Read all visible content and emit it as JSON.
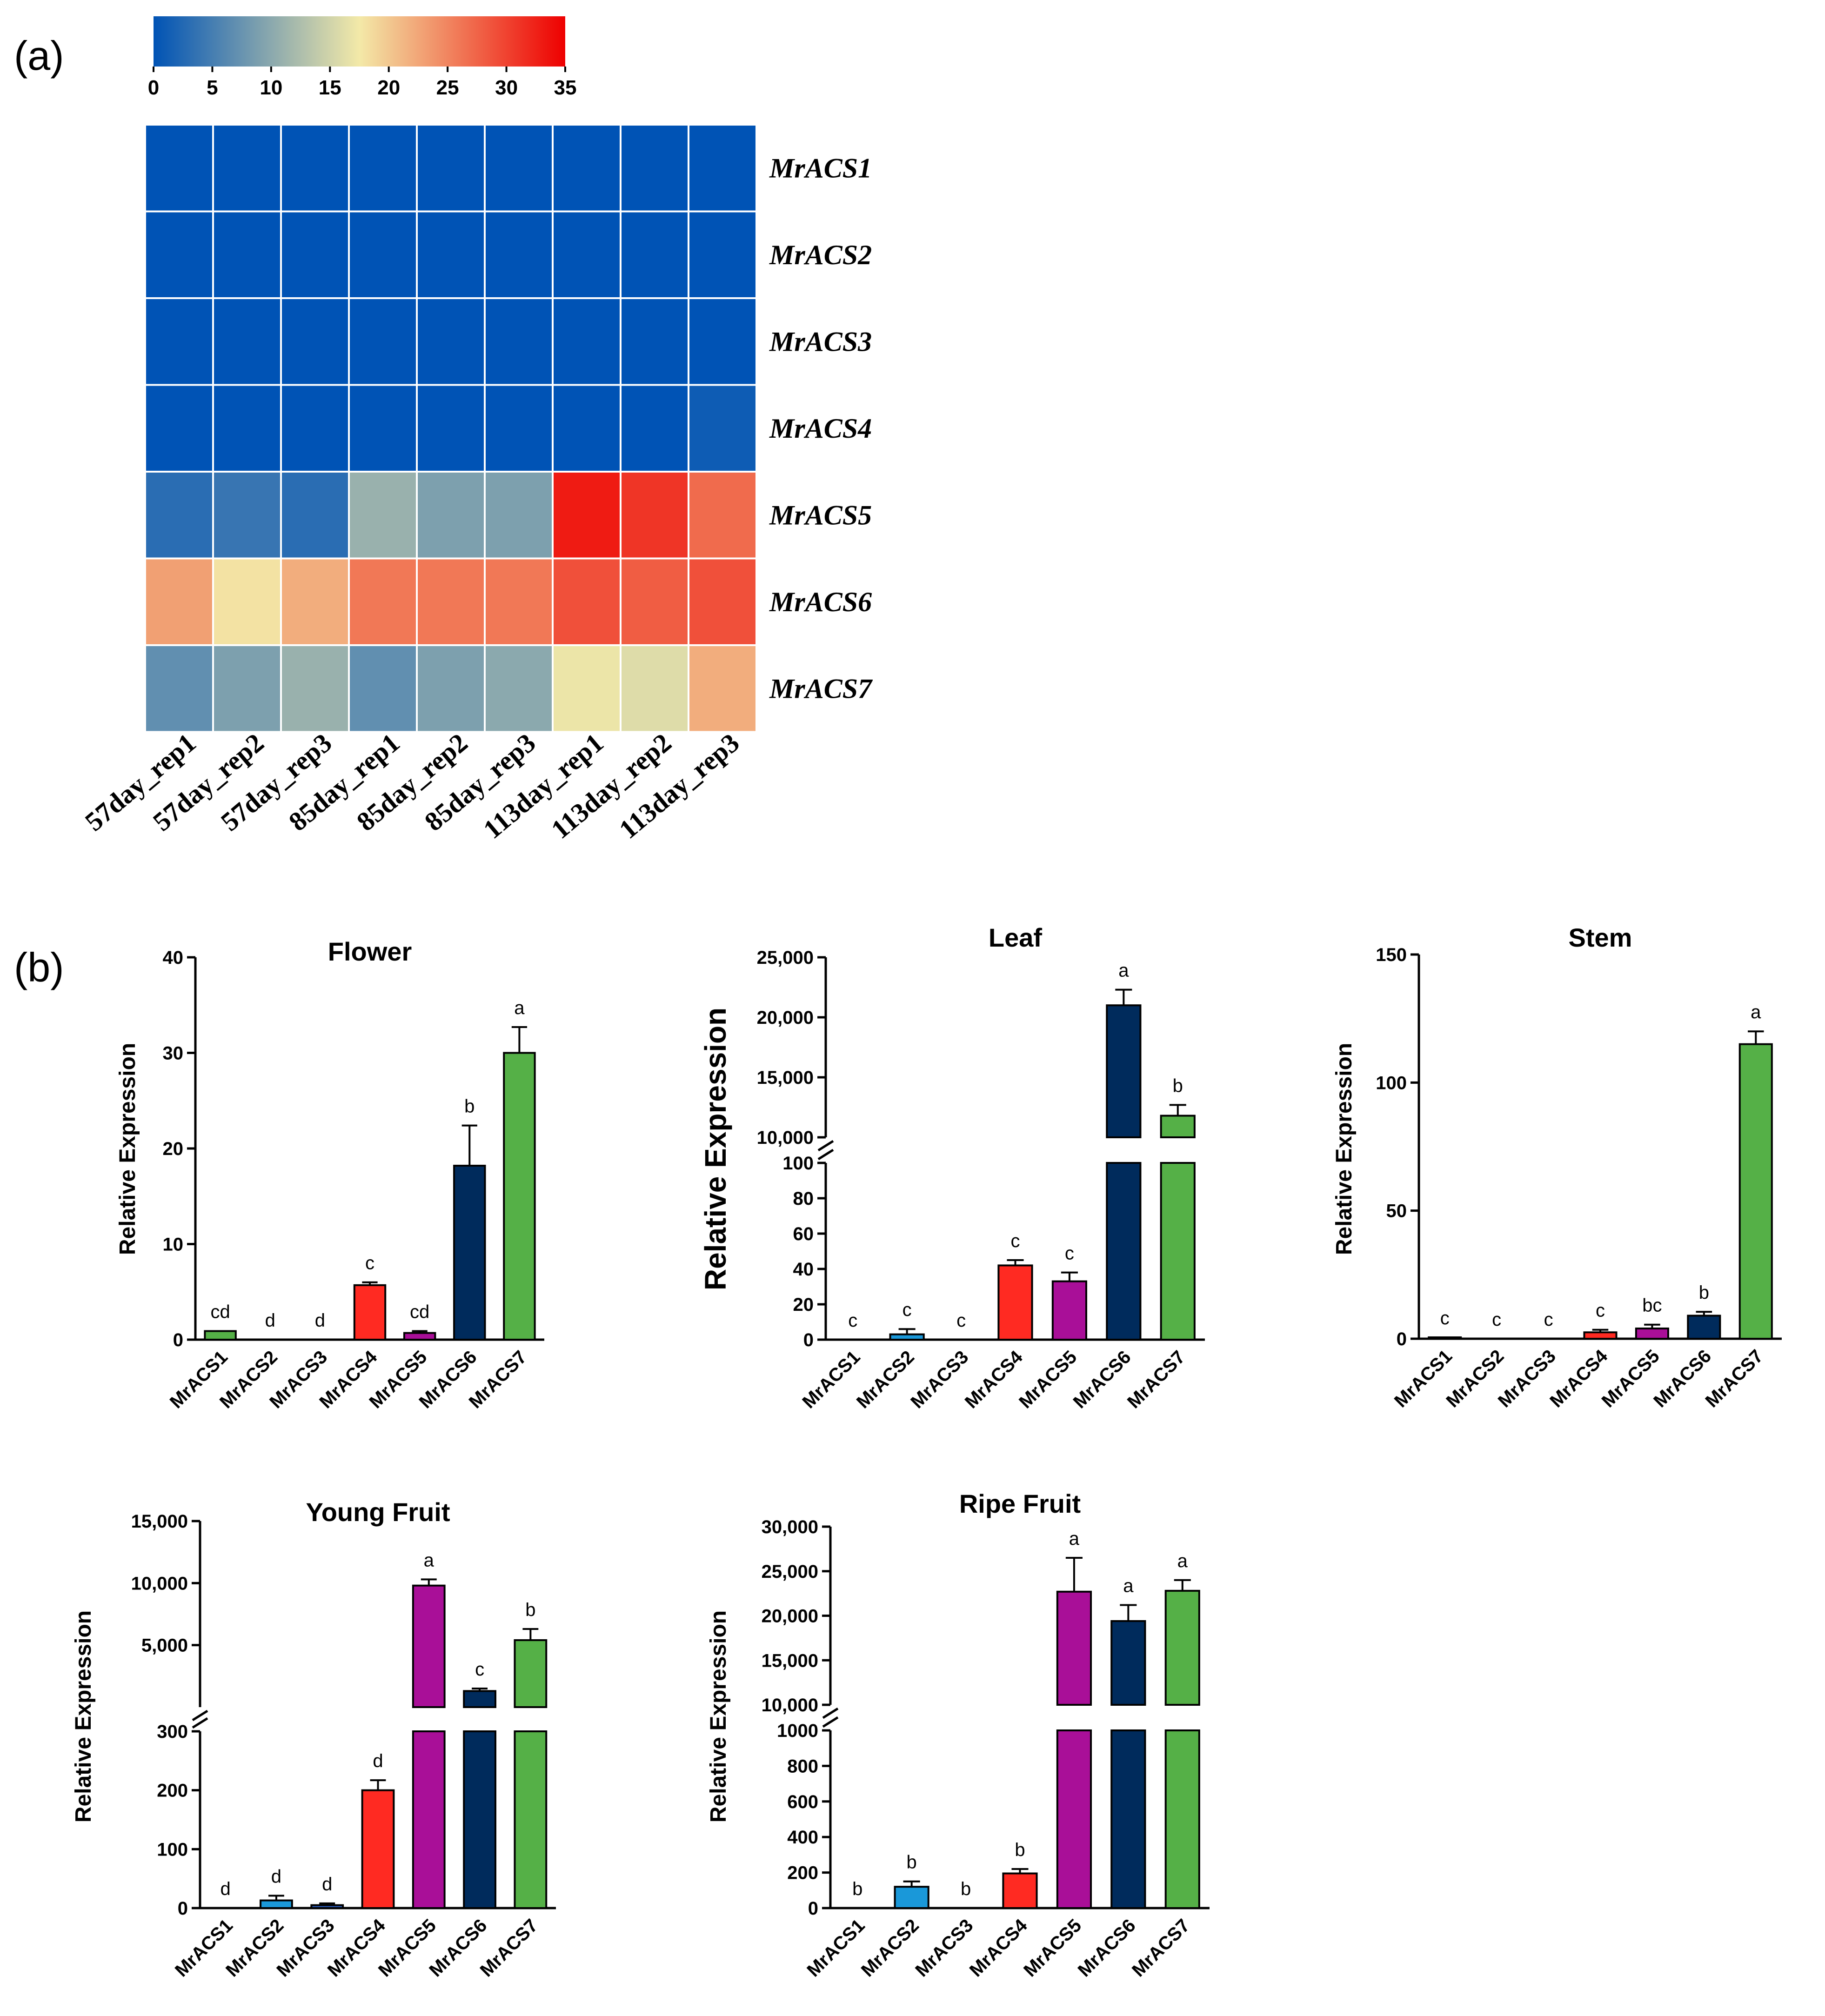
{
  "panel_labels": {
    "a": "(a)",
    "b": "(b)"
  },
  "colors": {
    "heat_stops": [
      "#0053b5",
      "#f3e9a8",
      "#ee0000"
    ],
    "MrACS1": "#55b047",
    "MrACS2": "#1a98d9",
    "MrACS3": "#2b5ab8",
    "MrACS4": "#ff2a22",
    "MrACS5": "#a90f98",
    "MrACS6": "#002b5c",
    "MrACS7": "#55b047"
  },
  "chart_data": [
    {
      "type": "heatmap",
      "colorbar": {
        "min": 0,
        "max": 35,
        "ticks": [
          "0",
          "5",
          "10",
          "15",
          "20",
          "25",
          "30",
          "35"
        ]
      },
      "rows": [
        "MrACS1",
        "MrACS2",
        "MrACS3",
        "MrACS4",
        "MrACS5",
        "MrACS6",
        "MrACS7"
      ],
      "columns": [
        "57day_rep1",
        "57day_rep2",
        "57day_rep3",
        "85day_rep1",
        "85day_rep2",
        "85day_rep3",
        "113day_rep1",
        "113day_rep2",
        "113day_rep3"
      ],
      "values": [
        [
          0,
          0,
          0,
          0,
          0,
          0,
          0,
          0,
          0
        ],
        [
          0,
          0,
          0,
          0,
          0,
          0,
          0,
          0,
          0
        ],
        [
          0,
          0,
          0,
          0,
          0,
          0,
          0,
          0,
          0
        ],
        [
          0,
          0,
          0,
          0,
          0,
          0,
          0,
          0,
          1
        ],
        [
          3,
          4,
          3,
          11,
          9,
          9,
          33,
          31,
          27
        ],
        [
          23,
          18,
          22,
          26,
          26,
          26,
          29,
          28,
          29
        ],
        [
          7,
          9,
          11,
          7,
          9,
          10,
          17,
          16,
          22
        ]
      ]
    },
    {
      "type": "bar",
      "title": "Flower",
      "ylabel": "Relative Expression",
      "categories": [
        "MrACS1",
        "MrACS2",
        "MrACS3",
        "MrACS4",
        "MrACS5",
        "MrACS6",
        "MrACS7"
      ],
      "values": [
        0.9,
        0,
        0,
        5.7,
        0.7,
        18.2,
        30
      ],
      "errors": [
        0,
        0,
        0,
        0.3,
        0.2,
        4.2,
        2.7
      ],
      "letters": [
        "cd",
        "d",
        "d",
        "c",
        "cd",
        "b",
        "a"
      ],
      "ylim": [
        0,
        40
      ],
      "yticks": [
        "0",
        "10",
        "20",
        "30",
        "40"
      ]
    },
    {
      "type": "bar",
      "title": "Leaf",
      "ylabel": "Relative Expression",
      "categories": [
        "MrACS1",
        "MrACS2",
        "MrACS3",
        "MrACS4",
        "MrACS5",
        "MrACS6",
        "MrACS7"
      ],
      "values": [
        0,
        3,
        0,
        42,
        33,
        21000,
        11800
      ],
      "errors": [
        0,
        3,
        0,
        3,
        5,
        1300,
        900
      ],
      "letters": [
        "c",
        "c",
        "c",
        "c",
        "c",
        "a",
        "b"
      ],
      "broken_axis": {
        "lower": [
          0,
          100
        ],
        "upper": [
          10000,
          25000
        ]
      },
      "yticks_lower": [
        "0",
        "20",
        "40",
        "60",
        "80",
        "100"
      ],
      "yticks_upper": [
        "10,000",
        "15,000",
        "20,000",
        "25,000"
      ]
    },
    {
      "type": "bar",
      "title": "Stem",
      "ylabel": "Relative Expression",
      "categories": [
        "MrACS1",
        "MrACS2",
        "MrACS3",
        "MrACS4",
        "MrACS5",
        "MrACS6",
        "MrACS7"
      ],
      "values": [
        0.5,
        0,
        0,
        2.5,
        4,
        9,
        115
      ],
      "errors": [
        0,
        0,
        0,
        1,
        1.5,
        1.5,
        5
      ],
      "letters": [
        "c",
        "c",
        "c",
        "c",
        "bc",
        "b",
        "a"
      ],
      "ylim": [
        0,
        150
      ],
      "yticks": [
        "0",
        "50",
        "100",
        "150"
      ]
    },
    {
      "type": "bar",
      "title": "Young Fruit",
      "ylabel": "Relative Expression",
      "categories": [
        "MrACS1",
        "MrACS2",
        "MrACS3",
        "MrACS4",
        "MrACS5",
        "MrACS6",
        "MrACS7"
      ],
      "values": [
        0,
        13,
        5,
        200,
        9800,
        1300,
        5400
      ],
      "errors": [
        0,
        8,
        3,
        17,
        500,
        200,
        900
      ],
      "letters": [
        "d",
        "d",
        "d",
        "d",
        "a",
        "c",
        "b"
      ],
      "broken_axis": {
        "lower": [
          0,
          300
        ],
        "upper": [
          0,
          15000
        ]
      },
      "yticks_lower": [
        "0",
        "100",
        "200",
        "300"
      ],
      "yticks_upper": [
        "5,000",
        "10,000",
        "15,000"
      ]
    },
    {
      "type": "bar",
      "title": "Ripe Fruit",
      "ylabel": "Relative Expression",
      "categories": [
        "MrACS1",
        "MrACS2",
        "MrACS3",
        "MrACS4",
        "MrACS5",
        "MrACS6",
        "MrACS7"
      ],
      "values": [
        0,
        120,
        0,
        195,
        22700,
        19400,
        22800
      ],
      "errors": [
        0,
        30,
        0,
        25,
        3800,
        1800,
        1200
      ],
      "letters": [
        "b",
        "b",
        "b",
        "b",
        "a",
        "a",
        "a"
      ],
      "broken_axis": {
        "lower": [
          0,
          1000
        ],
        "upper": [
          10000,
          30000
        ]
      },
      "yticks_lower": [
        "0",
        "200",
        "400",
        "600",
        "800",
        "1000"
      ],
      "yticks_upper": [
        "10,000",
        "15,000",
        "20,000",
        "25,000",
        "30,000"
      ]
    }
  ]
}
